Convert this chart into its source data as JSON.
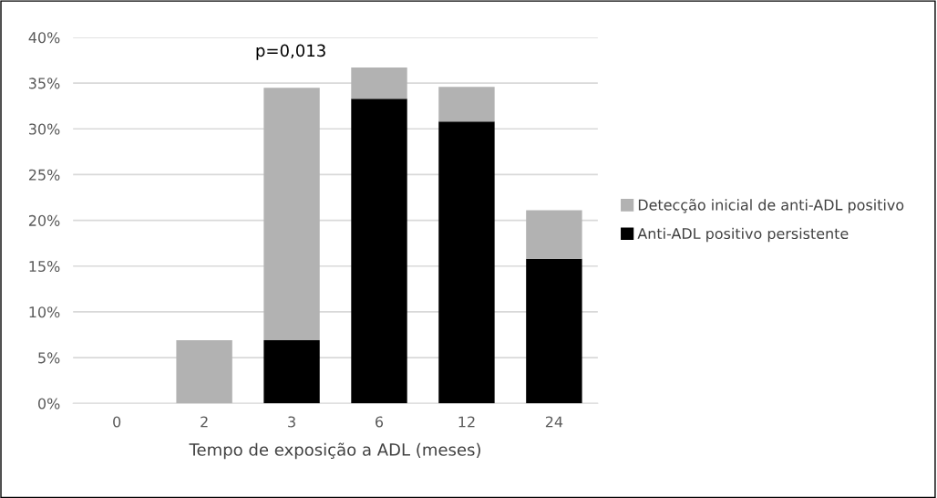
{
  "chart_data": {
    "type": "bar",
    "stacked": true,
    "xlabel": "Tempo de exposição a ADL (meses)",
    "categories": [
      "0",
      "2",
      "3",
      "6",
      "12",
      "24"
    ],
    "series": [
      {
        "name": "Anti-ADL positivo persistente",
        "color": "#000000",
        "values": [
          0,
          0,
          6.9,
          33.3,
          30.8,
          15.8
        ]
      },
      {
        "name": "Detecção inicial de anti-ADL positivo",
        "color": "#b2b2b2",
        "values": [
          0,
          6.9,
          27.6,
          3.4,
          3.8,
          5.3
        ]
      }
    ],
    "ylim": [
      0,
      40
    ],
    "yticks": [
      {
        "value": 0,
        "label": "0%"
      },
      {
        "value": 5,
        "label": "5%"
      },
      {
        "value": 10,
        "label": "10%"
      },
      {
        "value": 15,
        "label": "15%"
      },
      {
        "value": 20,
        "label": "20%"
      },
      {
        "value": 25,
        "label": "25%"
      },
      {
        "value": 30,
        "label": "30%"
      },
      {
        "value": 35,
        "label": "35%"
      },
      {
        "value": 40,
        "label": "40%"
      }
    ],
    "annotations": [
      "p=0,013"
    ],
    "grid": "y",
    "legend": "right"
  }
}
